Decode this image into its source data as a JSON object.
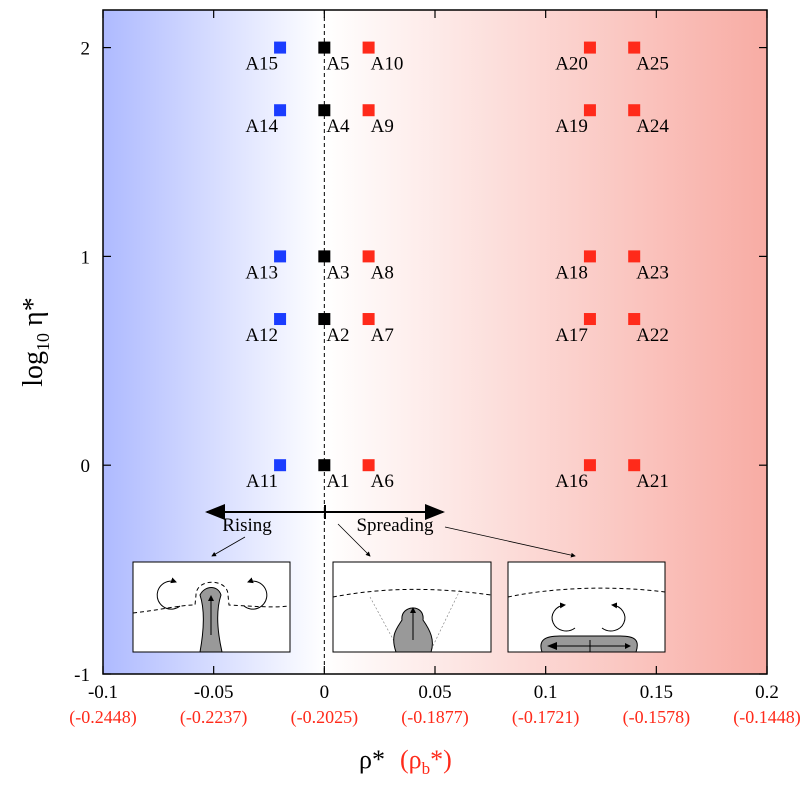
{
  "chart_data": {
    "type": "scatter",
    "xlabel": "ρ*",
    "x2label": [
      "(ρ",
      "b",
      "*)"
    ],
    "ylabel": [
      "log",
      "10",
      " η*"
    ],
    "xlim": [
      -0.1,
      0.2
    ],
    "ylim": [
      -1,
      2.18
    ],
    "xticks": [
      -0.1,
      -0.05,
      0,
      0.05,
      0.1,
      0.15,
      0.2
    ],
    "x2_tick_labels": [
      "(-0.2448)",
      "(-0.2237)",
      "(-0.2025)",
      "(-0.1877)",
      "(-0.1721)",
      "(-0.1578)",
      "(-0.1448)"
    ],
    "yticks": [
      -1,
      0,
      1,
      2
    ],
    "vline": 0,
    "x": [
      0,
      0,
      0,
      0,
      0,
      0.02,
      0.02,
      0.02,
      0.02,
      0.02,
      -0.02,
      -0.02,
      -0.02,
      -0.02,
      -0.02,
      0.12,
      0.12,
      0.12,
      0.12,
      0.12,
      0.14,
      0.14,
      0.14,
      0.14,
      0.14
    ],
    "y": [
      0,
      0.7,
      1,
      1.7,
      2,
      0,
      0.7,
      1,
      1.7,
      2,
      0,
      0.7,
      1,
      1.7,
      2,
      0,
      0.7,
      1,
      1.7,
      2,
      0,
      0.7,
      1,
      1.7,
      2
    ],
    "labels": [
      "A1",
      "A2",
      "A3",
      "A4",
      "A5",
      "A6",
      "A7",
      "A8",
      "A9",
      "A10",
      "A11",
      "A12",
      "A13",
      "A14",
      "A15",
      "A16",
      "A17",
      "A18",
      "A19",
      "A20",
      "A21",
      "A22",
      "A23",
      "A24",
      "A25"
    ],
    "colors": [
      "#000000",
      "#000000",
      "#000000",
      "#000000",
      "#000000",
      "#ff2a1a",
      "#ff2a1a",
      "#ff2a1a",
      "#ff2a1a",
      "#ff2a1a",
      "#1a3cff",
      "#1a3cff",
      "#1a3cff",
      "#1a3cff",
      "#1a3cff",
      "#ff2a1a",
      "#ff2a1a",
      "#ff2a1a",
      "#ff2a1a",
      "#ff2a1a",
      "#ff2a1a",
      "#ff2a1a",
      "#ff2a1a",
      "#ff2a1a",
      "#ff2a1a"
    ],
    "annotations": [
      "Rising",
      "Spreading"
    ]
  }
}
